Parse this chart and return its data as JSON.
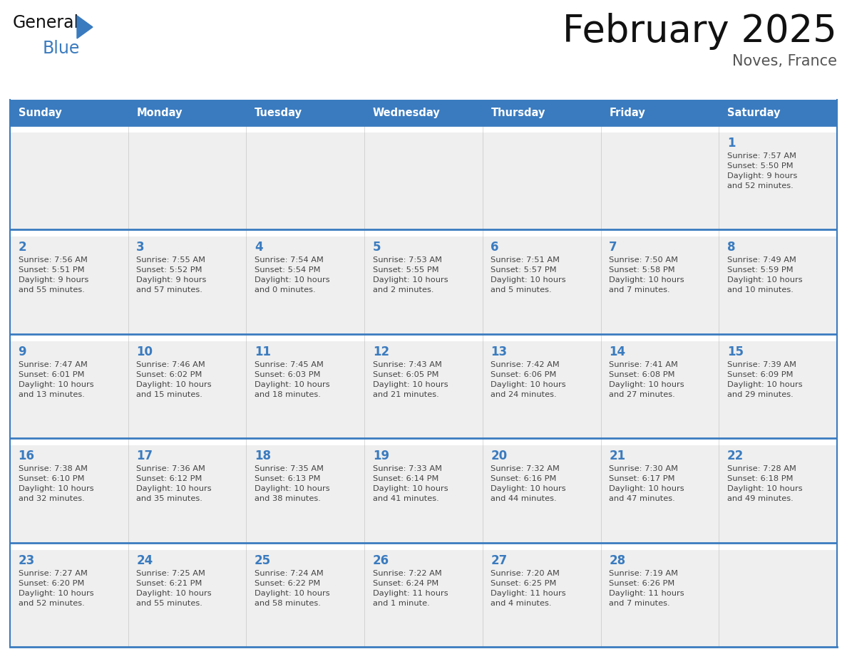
{
  "title": "February 2025",
  "subtitle": "Noves, France",
  "days_of_week": [
    "Sunday",
    "Monday",
    "Tuesday",
    "Wednesday",
    "Thursday",
    "Friday",
    "Saturday"
  ],
  "header_bg_color": "#3a7bbf",
  "header_text_color": "#ffffff",
  "cell_bg_color": "#efefef",
  "cell_white_gap_color": "#ffffff",
  "grid_line_color": "#3a7bbf",
  "day_number_color": "#3a7bbf",
  "text_color": "#444444",
  "title_color": "#111111",
  "subtitle_color": "#555555",
  "logo_general_color": "#111111",
  "logo_blue_color": "#3a7bbf",
  "calendar_data": [
    [
      null,
      null,
      null,
      null,
      null,
      null,
      {
        "day": 1,
        "sunrise": "7:57 AM",
        "sunset": "5:50 PM",
        "daylight": "9 hours\nand 52 minutes."
      }
    ],
    [
      {
        "day": 2,
        "sunrise": "7:56 AM",
        "sunset": "5:51 PM",
        "daylight": "9 hours\nand 55 minutes."
      },
      {
        "day": 3,
        "sunrise": "7:55 AM",
        "sunset": "5:52 PM",
        "daylight": "9 hours\nand 57 minutes."
      },
      {
        "day": 4,
        "sunrise": "7:54 AM",
        "sunset": "5:54 PM",
        "daylight": "10 hours\nand 0 minutes."
      },
      {
        "day": 5,
        "sunrise": "7:53 AM",
        "sunset": "5:55 PM",
        "daylight": "10 hours\nand 2 minutes."
      },
      {
        "day": 6,
        "sunrise": "7:51 AM",
        "sunset": "5:57 PM",
        "daylight": "10 hours\nand 5 minutes."
      },
      {
        "day": 7,
        "sunrise": "7:50 AM",
        "sunset": "5:58 PM",
        "daylight": "10 hours\nand 7 minutes."
      },
      {
        "day": 8,
        "sunrise": "7:49 AM",
        "sunset": "5:59 PM",
        "daylight": "10 hours\nand 10 minutes."
      }
    ],
    [
      {
        "day": 9,
        "sunrise": "7:47 AM",
        "sunset": "6:01 PM",
        "daylight": "10 hours\nand 13 minutes."
      },
      {
        "day": 10,
        "sunrise": "7:46 AM",
        "sunset": "6:02 PM",
        "daylight": "10 hours\nand 15 minutes."
      },
      {
        "day": 11,
        "sunrise": "7:45 AM",
        "sunset": "6:03 PM",
        "daylight": "10 hours\nand 18 minutes."
      },
      {
        "day": 12,
        "sunrise": "7:43 AM",
        "sunset": "6:05 PM",
        "daylight": "10 hours\nand 21 minutes."
      },
      {
        "day": 13,
        "sunrise": "7:42 AM",
        "sunset": "6:06 PM",
        "daylight": "10 hours\nand 24 minutes."
      },
      {
        "day": 14,
        "sunrise": "7:41 AM",
        "sunset": "6:08 PM",
        "daylight": "10 hours\nand 27 minutes."
      },
      {
        "day": 15,
        "sunrise": "7:39 AM",
        "sunset": "6:09 PM",
        "daylight": "10 hours\nand 29 minutes."
      }
    ],
    [
      {
        "day": 16,
        "sunrise": "7:38 AM",
        "sunset": "6:10 PM",
        "daylight": "10 hours\nand 32 minutes."
      },
      {
        "day": 17,
        "sunrise": "7:36 AM",
        "sunset": "6:12 PM",
        "daylight": "10 hours\nand 35 minutes."
      },
      {
        "day": 18,
        "sunrise": "7:35 AM",
        "sunset": "6:13 PM",
        "daylight": "10 hours\nand 38 minutes."
      },
      {
        "day": 19,
        "sunrise": "7:33 AM",
        "sunset": "6:14 PM",
        "daylight": "10 hours\nand 41 minutes."
      },
      {
        "day": 20,
        "sunrise": "7:32 AM",
        "sunset": "6:16 PM",
        "daylight": "10 hours\nand 44 minutes."
      },
      {
        "day": 21,
        "sunrise": "7:30 AM",
        "sunset": "6:17 PM",
        "daylight": "10 hours\nand 47 minutes."
      },
      {
        "day": 22,
        "sunrise": "7:28 AM",
        "sunset": "6:18 PM",
        "daylight": "10 hours\nand 49 minutes."
      }
    ],
    [
      {
        "day": 23,
        "sunrise": "7:27 AM",
        "sunset": "6:20 PM",
        "daylight": "10 hours\nand 52 minutes."
      },
      {
        "day": 24,
        "sunrise": "7:25 AM",
        "sunset": "6:21 PM",
        "daylight": "10 hours\nand 55 minutes."
      },
      {
        "day": 25,
        "sunrise": "7:24 AM",
        "sunset": "6:22 PM",
        "daylight": "10 hours\nand 58 minutes."
      },
      {
        "day": 26,
        "sunrise": "7:22 AM",
        "sunset": "6:24 PM",
        "daylight": "11 hours\nand 1 minute."
      },
      {
        "day": 27,
        "sunrise": "7:20 AM",
        "sunset": "6:25 PM",
        "daylight": "11 hours\nand 4 minutes."
      },
      {
        "day": 28,
        "sunrise": "7:19 AM",
        "sunset": "6:26 PM",
        "daylight": "11 hours\nand 7 minutes."
      },
      null
    ]
  ]
}
